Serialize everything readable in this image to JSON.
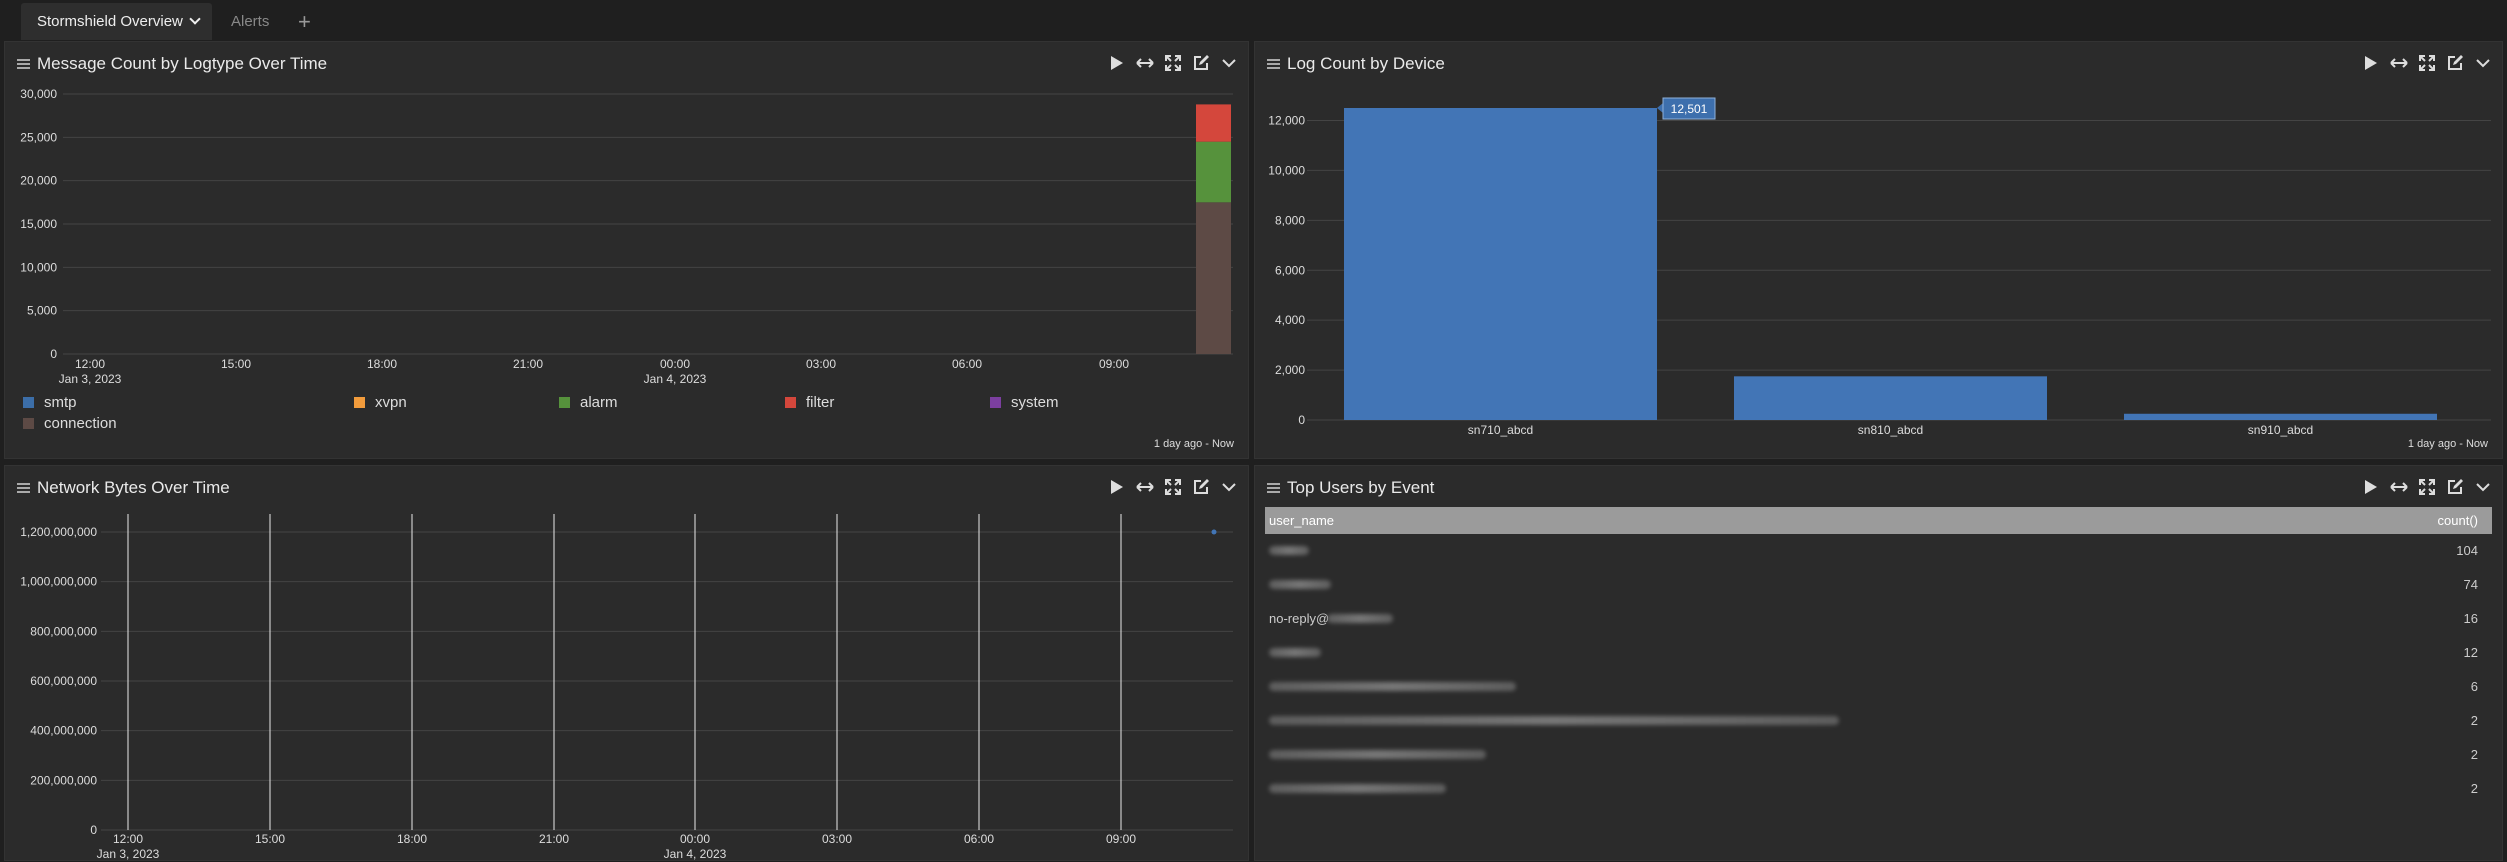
{
  "tabs": {
    "active": "Stormshield Overview",
    "alerts": "Alerts",
    "add": "+"
  },
  "panels": {
    "msg_count": {
      "title": "Message Count by Logtype Over Time",
      "footnote": "1 day ago - Now"
    },
    "log_device": {
      "title": "Log Count by Device",
      "footnote": "1 day ago - Now"
    },
    "net_bytes": {
      "title": "Network Bytes Over Time"
    },
    "top_users": {
      "title": "Top Users by Event"
    }
  },
  "colors": {
    "smtp": "#3c6ea8",
    "xvpn": "#f29c3c",
    "alarm": "#56923c",
    "filter": "#d4473c",
    "system": "#7c3fa0",
    "connection": "#5d4a45",
    "bar": "#4275b6"
  },
  "chart_data": [
    {
      "type": "area",
      "name": "msg_count",
      "x_ticks": [
        {
          "label": "12:00",
          "sub": "Jan 3, 2023"
        },
        {
          "label": "15:00",
          "sub": ""
        },
        {
          "label": "18:00",
          "sub": ""
        },
        {
          "label": "21:00",
          "sub": ""
        },
        {
          "label": "00:00",
          "sub": "Jan 4, 2023"
        },
        {
          "label": "03:00",
          "sub": ""
        },
        {
          "label": "06:00",
          "sub": ""
        },
        {
          "label": "09:00",
          "sub": ""
        }
      ],
      "y_ticks": [
        "30,000",
        "25,000",
        "20,000",
        "15,000",
        "10,000",
        "5,000",
        "0"
      ],
      "ylim": [
        0,
        30000
      ],
      "legend": [
        "smtp",
        "xvpn",
        "alarm",
        "filter",
        "system",
        "connection"
      ],
      "stack": [
        {
          "series": "connection",
          "value": 17500
        },
        {
          "series": "alarm",
          "value": 7000
        },
        {
          "series": "filter",
          "value": 4300
        }
      ]
    },
    {
      "type": "bar",
      "name": "log_device",
      "categories": [
        "sn710_abcd",
        "sn810_abcd",
        "sn910_abcd"
      ],
      "values": [
        12501,
        1750,
        250
      ],
      "ylim": [
        0,
        12501
      ],
      "y_ticks": [
        "12,000",
        "10,000",
        "8,000",
        "6,000",
        "4,000",
        "2,000",
        "0"
      ],
      "tooltip": "12,501"
    },
    {
      "type": "line",
      "name": "net_bytes",
      "x_ticks": [
        {
          "label": "12:00",
          "sub": "Jan 3, 2023"
        },
        {
          "label": "15:00",
          "sub": ""
        },
        {
          "label": "18:00",
          "sub": ""
        },
        {
          "label": "21:00",
          "sub": ""
        },
        {
          "label": "00:00",
          "sub": "Jan 4, 2023"
        },
        {
          "label": "03:00",
          "sub": ""
        },
        {
          "label": "06:00",
          "sub": ""
        },
        {
          "label": "09:00",
          "sub": ""
        }
      ],
      "y_ticks": [
        "1,200,000,000",
        "1,000,000,000",
        "800,000,000",
        "600,000,000",
        "400,000,000",
        "200,000,000",
        "0"
      ],
      "ylim": [
        0,
        1200000000
      ],
      "points": [
        1200000000
      ]
    },
    {
      "type": "table",
      "name": "top_users",
      "columns": [
        "user_name",
        "count()"
      ],
      "rows": [
        {
          "user_name": "",
          "count": "104"
        },
        {
          "user_name": "",
          "count": "74"
        },
        {
          "user_name": "no-reply@",
          "count": "16"
        },
        {
          "user_name": "",
          "count": "12"
        },
        {
          "user_name": "",
          "count": "6"
        },
        {
          "user_name": "",
          "count": "2"
        },
        {
          "user_name": "",
          "count": "2"
        },
        {
          "user_name": "",
          "count": "2"
        }
      ]
    }
  ]
}
